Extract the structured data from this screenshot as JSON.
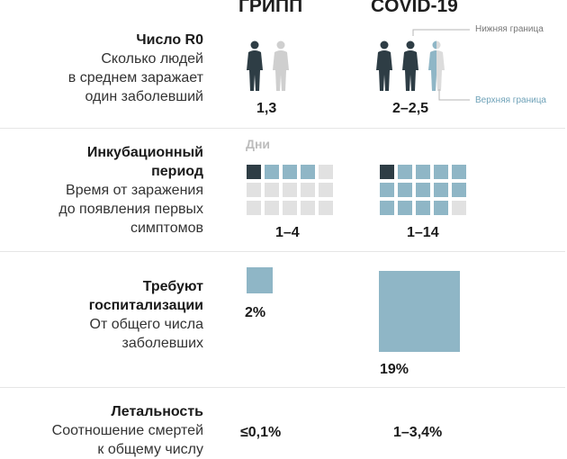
{
  "columns": {
    "flu": "ГРИПП",
    "covid": "COVID-19"
  },
  "colors": {
    "dark": "#2e3d45",
    "blue": "#8fb6c6",
    "gray": "#cfcfcf",
    "light": "#e1e1e1"
  },
  "r0": {
    "title": "Число R0",
    "desc_lines": [
      "Сколько людей",
      "в среднем заражает",
      "один заболевший"
    ],
    "flu_value": "1,3",
    "covid_value": "2–2,5",
    "lower_bound": "Нижняя граница",
    "upper_bound": "Верхняя граница",
    "flu_people": [
      "dark",
      "gray"
    ],
    "covid_people": [
      "dark",
      "dark",
      "blue-half"
    ]
  },
  "incubation": {
    "title_lines": [
      "Инкубационный",
      "период"
    ],
    "desc_lines": [
      "Время от заражения",
      "до появления первых",
      "симптомов"
    ],
    "unit_label": "Дни",
    "flu_value": "1–4",
    "covid_value": "1–14",
    "flu_days_min": 1,
    "flu_days_max": 4,
    "covid_days_min": 1,
    "covid_days_max": 14,
    "grid_total": 15
  },
  "hospitalization": {
    "title_lines": [
      "Требуют",
      "госпитализации"
    ],
    "desc_lines": [
      "От общего числа",
      "заболевших"
    ],
    "flu_value": "2%",
    "covid_value": "19%",
    "flu_percent": 2,
    "covid_percent": 19
  },
  "mortality": {
    "title": "Летальность",
    "desc_lines": [
      "Соотношение смертей",
      "к общему числу"
    ],
    "flu_value": "≤0,1%",
    "covid_value": "1–3,4%"
  }
}
